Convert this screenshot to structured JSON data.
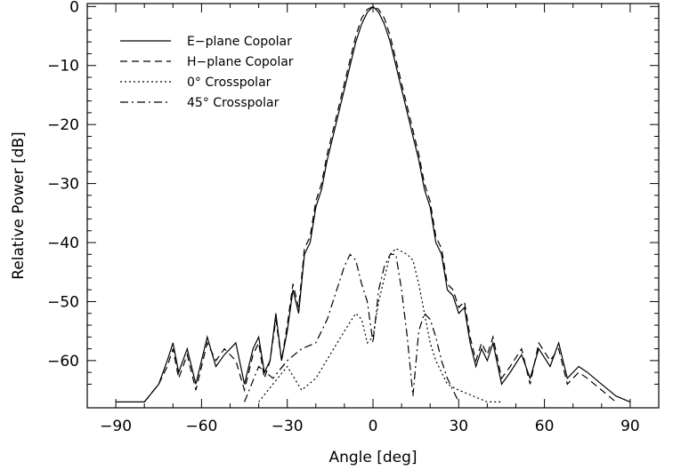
{
  "chart_data": {
    "type": "line",
    "title": "",
    "xlabel": "Angle [deg]",
    "ylabel": "Relative Power [dB]",
    "xlim": [
      -100,
      100
    ],
    "ylim": [
      -68,
      0.5
    ],
    "xticks": [
      -90,
      -60,
      -30,
      0,
      30,
      60,
      90
    ],
    "yticks": [
      0,
      -10,
      -20,
      -30,
      -40,
      -50,
      -60
    ],
    "xtick_labels": [
      "−90",
      "−60",
      "−30",
      "0",
      "30",
      "60",
      "90"
    ],
    "ytick_labels": [
      "0",
      "−10",
      "−20",
      "−30",
      "−40",
      "−50",
      "−60"
    ],
    "legend_position": "top-left",
    "grid": false,
    "series": [
      {
        "name": "E−plane Copolar",
        "dash": "solid",
        "x": [
          -90,
          -80,
          -75,
          -72,
          -70,
          -68,
          -65,
          -62,
          -58,
          -55,
          -52,
          -48,
          -45,
          -42,
          -40,
          -38,
          -36,
          -34,
          -32,
          -30,
          -28,
          -26,
          -24,
          -22,
          -20,
          -18,
          -16,
          -14,
          -12,
          -10,
          -8,
          -6,
          -4,
          -2,
          0,
          2,
          4,
          6,
          8,
          10,
          12,
          14,
          16,
          18,
          20,
          22,
          24,
          26,
          28,
          30,
          32,
          34,
          36,
          38,
          40,
          42,
          45,
          48,
          52,
          55,
          58,
          62,
          65,
          68,
          72,
          75,
          80,
          85,
          90
        ],
        "y": [
          -67,
          -67,
          -64,
          -60,
          -57,
          -62,
          -58,
          -64,
          -56,
          -61,
          -59,
          -57,
          -64,
          -58,
          -56,
          -62,
          -60,
          -52,
          -60,
          -55,
          -48,
          -52,
          -42,
          -40,
          -34,
          -31,
          -26,
          -22,
          -18,
          -14,
          -10,
          -6,
          -3,
          -1,
          0,
          -1,
          -3,
          -6,
          -10,
          -14,
          -18,
          -22,
          -26,
          -31,
          -34,
          -40,
          -42,
          -48,
          -49,
          -52,
          -51,
          -57,
          -61,
          -58,
          -60,
          -57,
          -64,
          -62,
          -59,
          -63,
          -58,
          -61,
          -57,
          -63,
          -61,
          -62,
          -64,
          -66,
          -67
        ]
      },
      {
        "name": "H−plane Copolar",
        "dash": "dashed",
        "x": [
          -80,
          -75,
          -72,
          -70,
          -68,
          -65,
          -62,
          -58,
          -55,
          -52,
          -48,
          -45,
          -42,
          -40,
          -38,
          -36,
          -34,
          -32,
          -30,
          -28,
          -26,
          -24,
          -22,
          -20,
          -18,
          -16,
          -14,
          -12,
          -10,
          -8,
          -6,
          -4,
          -2,
          0,
          2,
          4,
          6,
          8,
          10,
          12,
          14,
          16,
          18,
          20,
          22,
          24,
          26,
          28,
          30,
          32,
          34,
          36,
          38,
          40,
          42,
          45,
          48,
          52,
          55,
          58,
          62,
          65,
          68,
          72,
          75,
          80,
          85
        ],
        "y": [
          -67,
          -64,
          -61,
          -58,
          -63,
          -59,
          -65,
          -57,
          -60,
          -58,
          -60,
          -65,
          -59,
          -57,
          -63,
          -60,
          -53,
          -60,
          -54,
          -47,
          -51,
          -41,
          -39,
          -33,
          -30,
          -25,
          -21,
          -17,
          -13,
          -9,
          -5,
          -2,
          -0.5,
          0,
          -0.5,
          -2,
          -5,
          -9,
          -13,
          -17,
          -21,
          -25,
          -30,
          -33,
          -39,
          -41,
          -47,
          -48,
          -51,
          -50,
          -56,
          -60,
          -57,
          -59,
          -56,
          -63,
          -61,
          -58,
          -64,
          -57,
          -60,
          -58,
          -64,
          -62,
          -63,
          -65,
          -67
        ]
      },
      {
        "name": "0° Crosspolar",
        "dash": "dotted",
        "x": [
          -40,
          -35,
          -30,
          -25,
          -20,
          -15,
          -10,
          -6,
          -4,
          -2,
          0,
          2,
          4,
          6,
          8,
          10,
          12,
          14,
          16,
          18,
          20,
          22,
          24,
          26,
          30,
          35,
          40,
          45
        ],
        "y": [
          -67,
          -64,
          -61,
          -65,
          -63,
          -59,
          -55,
          -52,
          -53,
          -57,
          -56,
          -50,
          -46,
          -42,
          -41,
          -41.5,
          -42,
          -43,
          -47,
          -52,
          -57,
          -60,
          -62,
          -64,
          -65,
          -66,
          -67,
          -67
        ]
      },
      {
        "name": "45° Crosspolar",
        "dash": "dashdot",
        "x": [
          -45,
          -40,
          -35,
          -30,
          -25,
          -20,
          -16,
          -12,
          -10,
          -8,
          -6,
          -4,
          -2,
          0,
          2,
          4,
          6,
          8,
          10,
          12,
          14,
          16,
          18,
          20,
          22,
          24,
          26,
          28,
          30
        ],
        "y": [
          -67,
          -61,
          -63,
          -60,
          -58,
          -57,
          -53,
          -47,
          -44,
          -42,
          -43,
          -47,
          -50,
          -57,
          -48,
          -44,
          -42,
          -42,
          -48,
          -56,
          -66,
          -55,
          -52,
          -53,
          -56,
          -60,
          -63,
          -65,
          -67
        ]
      }
    ]
  }
}
